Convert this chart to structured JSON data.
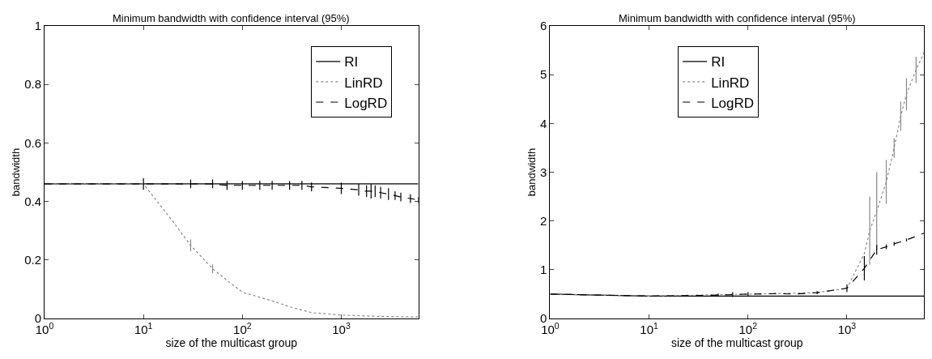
{
  "chart_data": [
    {
      "type": "line",
      "title": "Minimum bandwidth with confidence interval (95%)",
      "xlabel": "size of the multicast group",
      "ylabel": "bandwidth",
      "log": "x",
      "xlim": [
        1,
        6000
      ],
      "xticks": [
        {
          "value": 1,
          "label": "10$^{0}$"
        },
        {
          "value": 10,
          "label": "10$^{1}$"
        },
        {
          "value": 100,
          "label": "10$^{2}$"
        },
        {
          "value": 1000,
          "label": "10$^{3}$"
        }
      ],
      "ylim": [
        0,
        1
      ],
      "yticks": [
        0,
        0.2,
        0.4,
        0.6,
        0.8,
        1
      ],
      "legend": "top right",
      "marker": "none",
      "series": [
        {
          "name": "RI",
          "color": "#000000",
          "line_style": "solid",
          "x": [
            1,
            10,
            30,
            50,
            100,
            300,
            1000,
            2000,
            6000
          ],
          "values": [
            0.46,
            0.46,
            0.46,
            0.46,
            0.46,
            0.46,
            0.46,
            0.46,
            0.46
          ],
          "errors": [
            null,
            null,
            null,
            null,
            null,
            null,
            null,
            null,
            null
          ]
        },
        {
          "name": "LinRD",
          "color": "#888888",
          "line_style": "dotted",
          "x": [
            1,
            10,
            20,
            30,
            50,
            70,
            100,
            200,
            300,
            500,
            1000,
            2000,
            6000
          ],
          "values": [
            0.46,
            0.46,
            0.33,
            0.25,
            0.17,
            0.13,
            0.09,
            0.06,
            0.04,
            0.02,
            0.012,
            0.008,
            0.005
          ],
          "errors": [
            null,
            null,
            null,
            0.02,
            0.015,
            null,
            null,
            null,
            null,
            null,
            null,
            null,
            null
          ]
        },
        {
          "name": "LogRD",
          "color": "#000000",
          "line_style": "dashed",
          "x": [
            1,
            10,
            30,
            50,
            70,
            100,
            150,
            200,
            300,
            400,
            500,
            1000,
            1500,
            1800,
            2000,
            2200,
            2500,
            3000,
            3500,
            4000,
            5000,
            6000
          ],
          "values": [
            0.46,
            0.46,
            0.46,
            0.46,
            0.455,
            0.455,
            0.455,
            0.455,
            0.455,
            0.455,
            0.45,
            0.445,
            0.44,
            0.435,
            0.435,
            0.435,
            0.43,
            0.425,
            0.42,
            0.415,
            0.41,
            0.405
          ],
          "errors": [
            null,
            0.02,
            0.015,
            0.015,
            0.015,
            0.015,
            0.015,
            0.015,
            0.015,
            0.015,
            0.015,
            0.02,
            0.02,
            0.02,
            0.025,
            0.02,
            0.02,
            0.02,
            0.015,
            0.015,
            0.015,
            0.01
          ]
        }
      ]
    },
    {
      "type": "line",
      "title": "Minimum bandwidth with confidence interval (95%)",
      "xlabel": "size of the multicast group",
      "ylabel": "bandwidth",
      "log": "x",
      "xlim": [
        1,
        6000
      ],
      "xticks": [
        {
          "value": 1,
          "label": "10$^{0}$"
        },
        {
          "value": 10,
          "label": "10$^{1}$"
        },
        {
          "value": 100,
          "label": "10$^{2}$"
        },
        {
          "value": 1000,
          "label": "10$^{3}$"
        }
      ],
      "ylim": [
        0,
        6
      ],
      "yticks": [
        0,
        1,
        2,
        3,
        4,
        5,
        6
      ],
      "legend": "top",
      "marker": "none",
      "series": [
        {
          "name": "RI",
          "color": "#000000",
          "line_style": "solid",
          "x": [
            1,
            3,
            10,
            100,
            1000,
            2000,
            6000
          ],
          "values": [
            0.5,
            0.48,
            0.46,
            0.46,
            0.46,
            0.46,
            0.46
          ]
        },
        {
          "name": "LinRD",
          "color": "#888888",
          "line_style": "dotted",
          "x": [
            1,
            10,
            100,
            500,
            1000,
            1500,
            1700,
            2000,
            2500,
            3000,
            3500,
            4000,
            5000,
            6000
          ],
          "values": [
            0.5,
            0.46,
            0.5,
            0.53,
            0.62,
            1.33,
            1.8,
            2.2,
            2.8,
            3.5,
            4.15,
            4.6,
            5.1,
            5.45
          ],
          "errors": [
            null,
            null,
            null,
            null,
            null,
            null,
            0.7,
            0.8,
            0.45,
            0.2,
            0.3,
            0.33,
            0.27,
            null
          ]
        },
        {
          "name": "LogRD",
          "color": "#000000",
          "line_style": "dashed",
          "x": [
            1,
            10,
            30,
            50,
            70,
            100,
            200,
            300,
            500,
            1000,
            1500,
            2000,
            2500,
            3000,
            4000,
            6000
          ],
          "values": [
            0.5,
            0.46,
            0.47,
            0.48,
            0.49,
            0.5,
            0.51,
            0.5,
            0.53,
            0.62,
            1.03,
            1.41,
            1.47,
            1.53,
            1.61,
            1.75
          ],
          "errors": [
            null,
            null,
            null,
            0.03,
            0.05,
            0.04,
            null,
            null,
            0.03,
            0.08,
            0.25,
            0.1,
            0.05,
            0.04,
            0.03,
            null
          ]
        }
      ]
    }
  ]
}
